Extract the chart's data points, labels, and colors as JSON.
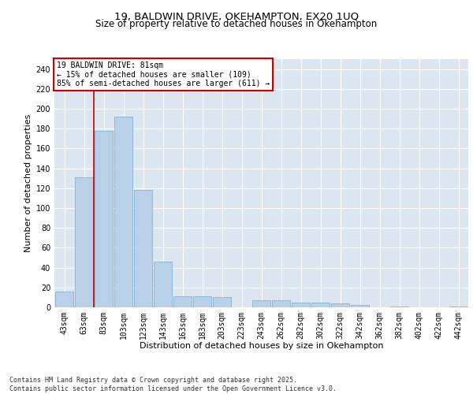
{
  "title_line1": "19, BALDWIN DRIVE, OKEHAMPTON, EX20 1UQ",
  "title_line2": "Size of property relative to detached houses in Okehampton",
  "xlabel": "Distribution of detached houses by size in Okehampton",
  "ylabel": "Number of detached properties",
  "categories": [
    "43sqm",
    "63sqm",
    "83sqm",
    "103sqm",
    "123sqm",
    "143sqm",
    "163sqm",
    "183sqm",
    "203sqm",
    "223sqm",
    "243sqm",
    "262sqm",
    "282sqm",
    "302sqm",
    "322sqm",
    "342sqm",
    "362sqm",
    "382sqm",
    "402sqm",
    "422sqm",
    "442sqm"
  ],
  "values": [
    16,
    131,
    178,
    192,
    118,
    46,
    11,
    11,
    10,
    0,
    7,
    7,
    5,
    5,
    4,
    2,
    0,
    1,
    0,
    0,
    1
  ],
  "bar_color": "#b8d0e8",
  "bar_edgecolor": "#7aaad0",
  "bar_linewidth": 0.5,
  "vline_index": 2,
  "vline_color": "#cc0000",
  "ylim": [
    0,
    250
  ],
  "yticks": [
    0,
    20,
    40,
    60,
    80,
    100,
    120,
    140,
    160,
    180,
    200,
    220,
    240
  ],
  "background_color": "#dce6f0",
  "annotation_text": "19 BALDWIN DRIVE: 81sqm\n← 15% of detached houses are smaller (109)\n85% of semi-detached houses are larger (611) →",
  "annotation_box_facecolor": "#ffffff",
  "annotation_box_edgecolor": "#cc0000",
  "footer_line1": "Contains HM Land Registry data © Crown copyright and database right 2025.",
  "footer_line2": "Contains public sector information licensed under the Open Government Licence v3.0.",
  "grid_color": "#ffffff",
  "title_fontsize": 9.5,
  "subtitle_fontsize": 8.5,
  "axis_label_fontsize": 8,
  "tick_fontsize": 7,
  "annotation_fontsize": 7,
  "footer_fontsize": 6
}
